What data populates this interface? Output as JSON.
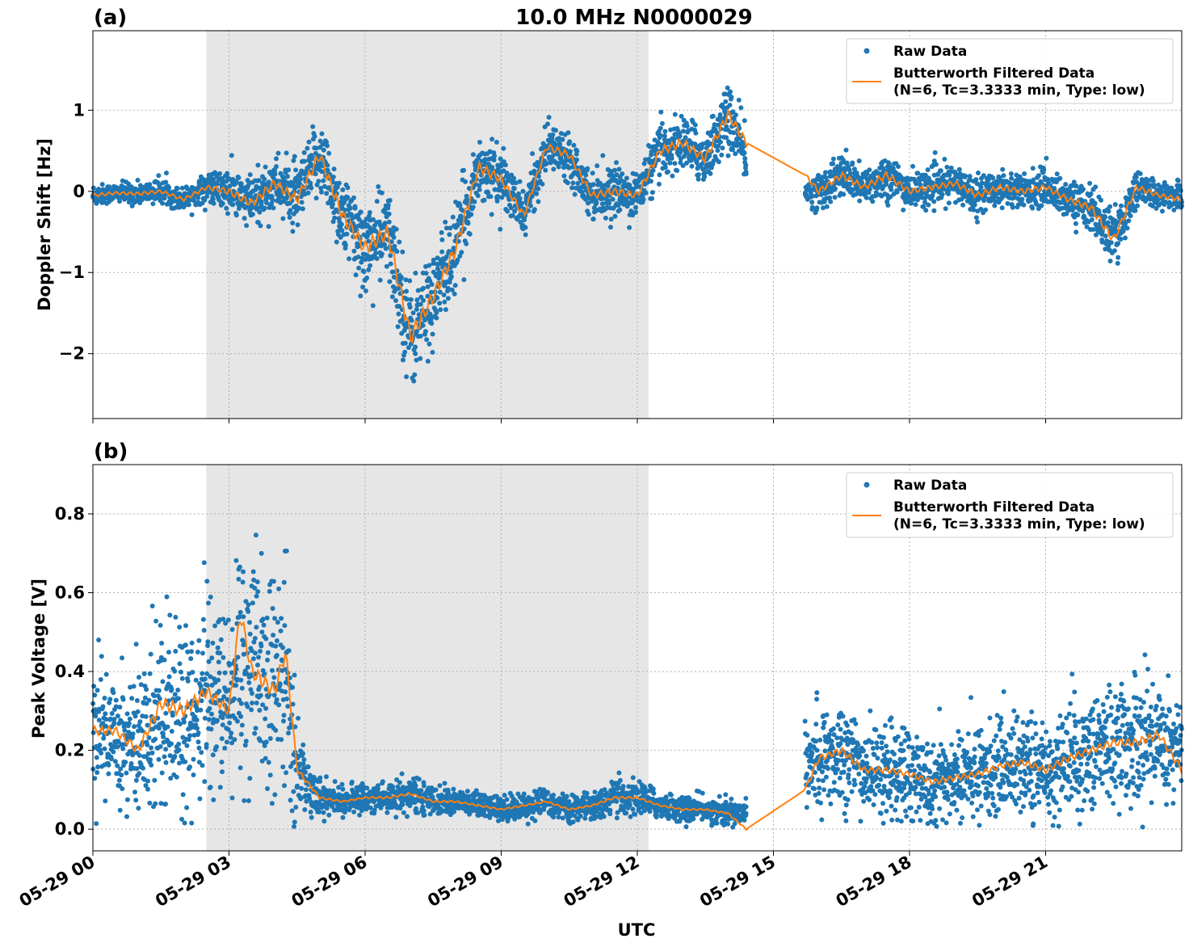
{
  "figure": {
    "suptitle": "10.0 MHz N0000029",
    "xlabel": "UTC",
    "x_tick_labels": [
      "05-29 00",
      "05-29 03",
      "05-29 06",
      "05-29 09",
      "05-29 12",
      "05-29 15",
      "05-29 18",
      "05-29 21"
    ],
    "colors": {
      "raw": "#1f77b4",
      "filtered": "#ff7f0e",
      "shade": "#e6e6e6",
      "grid": "#b0b0b0"
    }
  },
  "chart_data": [
    {
      "type": "scatter",
      "panel_label": "(a)",
      "ylabel": "Doppler Shift [Hz]",
      "y_tick_labels": [
        "−2",
        "−1",
        "0",
        "1"
      ],
      "x_range_hours": [
        0,
        24
      ],
      "ylim": [
        -2.8,
        1.98
      ],
      "shaded_span_hours": [
        2.5,
        12.25
      ],
      "grid": true,
      "legend": {
        "placement": "top-right",
        "entries": [
          "Raw Data",
          "Butterworth Filtered Data",
          "(N=6, Tc=3.3333 min, Type: low)"
        ]
      },
      "series": [
        {
          "name": "Raw Data",
          "style": "dots",
          "x": [
            0,
            0.5,
            1,
            1.5,
            2,
            2.5,
            3,
            3.5,
            4,
            4.5,
            5,
            5.5,
            6,
            6.5,
            7,
            7.5,
            8,
            8.5,
            9,
            9.5,
            10,
            10.5,
            11,
            11.5,
            12,
            12.5,
            13,
            13.5,
            14,
            14.4,
            15.7,
            16,
            16.5,
            17,
            17.5,
            18,
            18.5,
            19,
            19.5,
            20,
            20.5,
            21,
            21.5,
            22,
            22.5,
            23,
            23.5,
            24
          ],
          "y": [
            -0.05,
            -0.02,
            -0.03,
            0.0,
            -0.1,
            0.05,
            0.0,
            -0.15,
            0.1,
            -0.1,
            0.45,
            -0.3,
            -0.7,
            -0.5,
            -1.8,
            -1.3,
            -0.7,
            0.3,
            0.15,
            -0.3,
            0.55,
            0.45,
            -0.05,
            0.0,
            -0.05,
            0.5,
            0.6,
            0.4,
            0.95,
            0.4,
            0.0,
            0.0,
            0.2,
            0.05,
            0.2,
            0.0,
            0.05,
            0.1,
            -0.05,
            0.05,
            0.0,
            0.05,
            -0.1,
            -0.2,
            -0.6,
            0.05,
            -0.05,
            -0.05
          ],
          "spread": [
            0.12,
            0.1,
            0.12,
            0.12,
            0.12,
            0.15,
            0.25,
            0.3,
            0.3,
            0.35,
            0.4,
            0.45,
            0.5,
            0.5,
            0.6,
            0.5,
            0.5,
            0.35,
            0.3,
            0.25,
            0.25,
            0.25,
            0.25,
            0.25,
            0.25,
            0.3,
            0.3,
            0.3,
            0.35,
            0.3,
            0.15,
            0.2,
            0.25,
            0.2,
            0.25,
            0.2,
            0.2,
            0.2,
            0.2,
            0.2,
            0.2,
            0.2,
            0.2,
            0.25,
            0.3,
            0.2,
            0.15,
            0.15
          ]
        },
        {
          "name": "Butterworth Filtered Data",
          "style": "line",
          "x": [
            0,
            0.5,
            1,
            1.5,
            2,
            2.5,
            3,
            3.5,
            4,
            4.5,
            5,
            5.5,
            6,
            6.5,
            7,
            7.5,
            8,
            8.5,
            9,
            9.5,
            10,
            10.5,
            11,
            11.5,
            12,
            12.5,
            13,
            13.5,
            14,
            14.4,
            15.7,
            16,
            16.5,
            17,
            17.5,
            18,
            18.5,
            19,
            19.5,
            20,
            20.5,
            21,
            21.5,
            22,
            22.5,
            23,
            23.5,
            24
          ],
          "y": [
            -0.05,
            -0.02,
            -0.03,
            0.0,
            -0.1,
            0.05,
            0.0,
            -0.15,
            0.1,
            -0.1,
            0.45,
            -0.3,
            -0.7,
            -0.5,
            -1.8,
            -1.3,
            -0.7,
            0.3,
            0.15,
            -0.3,
            0.55,
            0.45,
            -0.05,
            0.0,
            -0.05,
            0.5,
            0.6,
            0.4,
            0.95,
            0.6,
            0.2,
            0.0,
            0.2,
            0.05,
            0.2,
            0.0,
            0.05,
            0.1,
            -0.05,
            0.05,
            0.0,
            0.05,
            -0.1,
            -0.2,
            -0.6,
            0.05,
            -0.05,
            -0.1
          ]
        }
      ]
    },
    {
      "type": "scatter",
      "panel_label": "(b)",
      "ylabel": "Peak Voltage [V]",
      "y_tick_labels": [
        "0.0",
        "0.2",
        "0.4",
        "0.6",
        "0.8"
      ],
      "x_range_hours": [
        0,
        24
      ],
      "ylim": [
        -0.055,
        0.925
      ],
      "shaded_span_hours": [
        2.5,
        12.25
      ],
      "grid": true,
      "legend": {
        "placement": "top-right",
        "entries": [
          "Raw Data",
          "Butterworth Filtered Data",
          "(N=6, Tc=3.3333 min, Type: low)"
        ]
      },
      "series": [
        {
          "name": "Raw Data",
          "style": "dots",
          "x": [
            0,
            0.5,
            1,
            1.5,
            2,
            2.5,
            3,
            3.25,
            3.5,
            4,
            4.25,
            4.5,
            5,
            5.5,
            6,
            6.5,
            7,
            7.5,
            8,
            8.5,
            9,
            9.5,
            10,
            10.5,
            11,
            11.5,
            12,
            12.5,
            13,
            13.5,
            14,
            14.4,
            15.7,
            16,
            16.5,
            17,
            17.5,
            18,
            18.5,
            19,
            19.5,
            20,
            20.5,
            21,
            21.5,
            22,
            22.5,
            23,
            23.5,
            24
          ],
          "y": [
            0.25,
            0.25,
            0.2,
            0.32,
            0.3,
            0.35,
            0.3,
            0.45,
            0.4,
            0.35,
            0.4,
            0.15,
            0.08,
            0.07,
            0.08,
            0.08,
            0.09,
            0.07,
            0.07,
            0.06,
            0.05,
            0.06,
            0.07,
            0.05,
            0.06,
            0.08,
            0.08,
            0.06,
            0.05,
            0.05,
            0.04,
            0.05,
            0.2,
            0.18,
            0.2,
            0.15,
            0.15,
            0.14,
            0.12,
            0.13,
            0.14,
            0.16,
            0.17,
            0.15,
            0.18,
            0.2,
            0.22,
            0.22,
            0.24,
            0.2
          ],
          "spread": [
            0.15,
            0.15,
            0.18,
            0.22,
            0.22,
            0.2,
            0.2,
            0.3,
            0.25,
            0.25,
            0.25,
            0.1,
            0.04,
            0.03,
            0.03,
            0.04,
            0.04,
            0.03,
            0.03,
            0.03,
            0.03,
            0.03,
            0.03,
            0.03,
            0.03,
            0.04,
            0.04,
            0.03,
            0.03,
            0.03,
            0.03,
            0.03,
            0.12,
            0.12,
            0.12,
            0.1,
            0.1,
            0.1,
            0.1,
            0.1,
            0.1,
            0.1,
            0.12,
            0.12,
            0.12,
            0.12,
            0.14,
            0.14,
            0.14,
            0.12
          ]
        },
        {
          "name": "Butterworth Filtered Data",
          "style": "line",
          "x": [
            0,
            0.5,
            1,
            1.5,
            2,
            2.5,
            3,
            3.25,
            3.5,
            4,
            4.25,
            4.5,
            5,
            5.5,
            6,
            6.5,
            7,
            7.5,
            8,
            8.5,
            9,
            9.5,
            10,
            10.5,
            11,
            11.5,
            12,
            12.5,
            13,
            13.5,
            14,
            14.4,
            15.7,
            16,
            16.5,
            17,
            17.5,
            18,
            18.5,
            19,
            19.5,
            20,
            20.5,
            21,
            21.5,
            22,
            22.5,
            23,
            23.5,
            24
          ],
          "y": [
            0.25,
            0.25,
            0.2,
            0.32,
            0.3,
            0.35,
            0.3,
            0.55,
            0.4,
            0.35,
            0.45,
            0.15,
            0.08,
            0.07,
            0.08,
            0.08,
            0.09,
            0.07,
            0.07,
            0.06,
            0.05,
            0.06,
            0.07,
            0.05,
            0.06,
            0.08,
            0.08,
            0.06,
            0.05,
            0.05,
            0.04,
            0.0,
            0.1,
            0.18,
            0.2,
            0.15,
            0.15,
            0.14,
            0.12,
            0.13,
            0.14,
            0.16,
            0.17,
            0.15,
            0.18,
            0.2,
            0.22,
            0.22,
            0.24,
            0.15
          ]
        }
      ]
    }
  ]
}
